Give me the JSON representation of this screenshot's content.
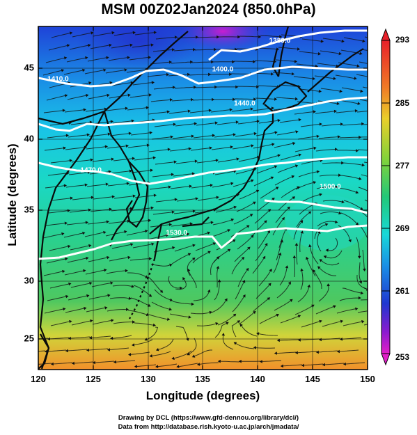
{
  "title": "MSM 00Z02Jan2024 (850.0hPa)",
  "xlabel": "Longitude (degrees)",
  "ylabel": "Latitude  (degrees)",
  "credits": [
    "Drawing by DCL (https://www.gfd-dennou.org/library/dcl/)",
    "Data from http://database.rish.kyoto-u.ac.jp/arch/jmadata/"
  ],
  "map": {
    "lon_range": [
      120,
      150
    ],
    "lat_range": [
      22.4,
      47.6
    ],
    "lon_ticks": [
      "120",
      "125",
      "130",
      "135",
      "140",
      "145",
      "150"
    ],
    "lat_ticks": [
      "25",
      "30",
      "35",
      "40",
      "45"
    ],
    "grid": true,
    "contour_labels": [
      {
        "text": "1380.0",
        "lon": 142.0,
        "lat": 46.4
      },
      {
        "text": "1400.0",
        "lon": 136.8,
        "lat": 44.3
      },
      {
        "text": "1410.0",
        "lon": 121.8,
        "lat": 43.6
      },
      {
        "text": "1440.0",
        "lon": 138.8,
        "lat": 41.8
      },
      {
        "text": "1470.0",
        "lon": 124.8,
        "lat": 36.9
      },
      {
        "text": "1500.0",
        "lon": 146.6,
        "lat": 35.7
      },
      {
        "text": "1530.0",
        "lon": 132.6,
        "lat": 32.3
      }
    ]
  },
  "colorbar": {
    "ticks": [
      "293",
      "285",
      "277",
      "269",
      "261",
      "253"
    ],
    "range": [
      253,
      293
    ]
  }
}
